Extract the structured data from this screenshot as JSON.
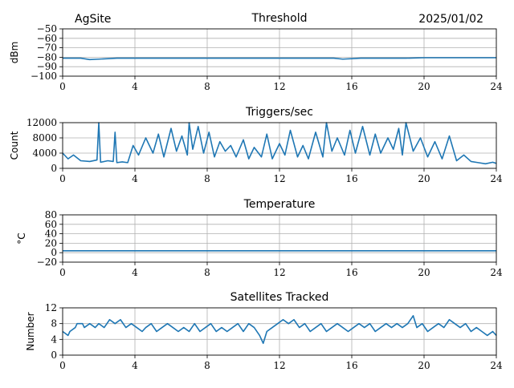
{
  "header": {
    "site": "AgSite",
    "date": "2025/01/02"
  },
  "colors": {
    "line": "#1f77b4",
    "grid": "#b0b0b0",
    "axis": "#000000"
  },
  "chart_data": [
    {
      "type": "line",
      "title": "Threshold",
      "ylabel": "dBm",
      "xlim": [
        0,
        24
      ],
      "ylim": [
        -100,
        -50
      ],
      "xticks": [
        0,
        4,
        8,
        12,
        16,
        20,
        24
      ],
      "yticks": [
        -100,
        -90,
        -80,
        -70,
        -60,
        -50
      ],
      "xtick_labels": [
        "0",
        "4",
        "8",
        "12",
        "16",
        "20",
        "24"
      ],
      "ytick_labels": [
        "−100",
        "−90",
        "−80",
        "−70",
        "−60",
        "−50"
      ],
      "grid": true,
      "series": [
        {
          "x": [
            0,
            0.5,
            1.0,
            1.5,
            2.0,
            2.5,
            3.0,
            4,
            5,
            6,
            7,
            8,
            9,
            10,
            11,
            12,
            13,
            14,
            15,
            15.5,
            16,
            16.5,
            17,
            18,
            19,
            20,
            21,
            22,
            23,
            24
          ],
          "y": [
            -81,
            -81,
            -81,
            -82.5,
            -82,
            -81.5,
            -81,
            -81,
            -81,
            -81,
            -81,
            -81,
            -81,
            -81,
            -81,
            -81,
            -81,
            -81,
            -81,
            -82,
            -81.5,
            -81,
            -81,
            -81,
            -81,
            -80.5,
            -80.5,
            -80.5,
            -80.5,
            -80.5
          ]
        }
      ]
    },
    {
      "type": "line",
      "title": "Triggers/sec",
      "ylabel": "Count",
      "xlim": [
        0,
        24
      ],
      "ylim": [
        0,
        12000
      ],
      "xticks": [
        0,
        4,
        8,
        12,
        16,
        20,
        24
      ],
      "yticks": [
        0,
        4000,
        8000,
        12000
      ],
      "xtick_labels": [
        "0",
        "4",
        "8",
        "12",
        "16",
        "20",
        "24"
      ],
      "ytick_labels": [
        "0",
        "4000",
        "8000",
        "12000"
      ],
      "grid": true,
      "series": [
        {
          "x": [
            0,
            0.3,
            0.6,
            1.0,
            1.5,
            1.9,
            2.0,
            2.1,
            2.5,
            2.8,
            2.9,
            3.0,
            3.3,
            3.6,
            3.9,
            4.2,
            4.6,
            5.0,
            5.3,
            5.6,
            6.0,
            6.3,
            6.6,
            6.9,
            7.0,
            7.2,
            7.5,
            7.8,
            8.1,
            8.4,
            8.7,
            9.0,
            9.3,
            9.6,
            10.0,
            10.3,
            10.6,
            11.0,
            11.3,
            11.6,
            12.0,
            12.3,
            12.6,
            13.0,
            13.3,
            13.6,
            14.0,
            14.4,
            14.6,
            14.9,
            15.2,
            15.6,
            15.9,
            16.2,
            16.6,
            17.0,
            17.3,
            17.6,
            18.0,
            18.3,
            18.6,
            18.8,
            19.0,
            19.4,
            19.8,
            20.2,
            20.6,
            21.0,
            21.4,
            21.8,
            22.2,
            22.6,
            23.0,
            23.4,
            23.8,
            24
          ],
          "y": [
            4000,
            2500,
            3500,
            2000,
            1800,
            2200,
            12000,
            1600,
            2000,
            1800,
            9500,
            1500,
            1700,
            1500,
            6000,
            3500,
            8000,
            4000,
            9000,
            3000,
            10500,
            4500,
            8500,
            3500,
            12000,
            5000,
            11000,
            4000,
            9500,
            3000,
            7000,
            4500,
            6000,
            3000,
            7500,
            2500,
            5500,
            3000,
            9000,
            2500,
            6500,
            3500,
            10000,
            3000,
            6000,
            2500,
            9500,
            3000,
            12000,
            4500,
            8000,
            3500,
            10000,
            4000,
            11000,
            3500,
            9000,
            4000,
            8000,
            5000,
            10500,
            3500,
            12000,
            4500,
            8000,
            3000,
            7000,
            2500,
            8500,
            2000,
            3500,
            1800,
            1500,
            1200,
            1600,
            1300
          ]
        }
      ]
    },
    {
      "type": "line",
      "title": "Temperature",
      "ylabel": "°C",
      "xlim": [
        0,
        24
      ],
      "ylim": [
        -20,
        80
      ],
      "xticks": [
        0,
        4,
        8,
        12,
        16,
        20,
        24
      ],
      "yticks": [
        -20,
        0,
        20,
        40,
        60,
        80
      ],
      "xtick_labels": [
        "0",
        "4",
        "8",
        "12",
        "16",
        "20",
        "24"
      ],
      "ytick_labels": [
        "−20",
        "0",
        "20",
        "40",
        "60",
        "80"
      ],
      "grid": true,
      "series": [
        {
          "x": [
            0,
            24
          ],
          "y": [
            4,
            4
          ]
        }
      ]
    },
    {
      "type": "line",
      "title": "Satellites Tracked",
      "ylabel": "Number",
      "xlim": [
        0,
        24
      ],
      "ylim": [
        0,
        12
      ],
      "xticks": [
        0,
        4,
        8,
        12,
        16,
        20,
        24
      ],
      "yticks": [
        0,
        4,
        8,
        12
      ],
      "xtick_labels": [
        "0",
        "4",
        "8",
        "12",
        "16",
        "20",
        "24"
      ],
      "ytick_labels": [
        "0",
        "4",
        "8",
        "12"
      ],
      "grid": true,
      "series": [
        {
          "x": [
            0,
            0.3,
            0.4,
            0.7,
            0.8,
            1.1,
            1.2,
            1.5,
            1.8,
            2.0,
            2.3,
            2.6,
            2.9,
            3.2,
            3.5,
            3.8,
            4.1,
            4.4,
            4.6,
            4.9,
            5.2,
            5.5,
            5.8,
            6.1,
            6.4,
            6.7,
            7.0,
            7.3,
            7.6,
            7.9,
            8.2,
            8.5,
            8.8,
            9.1,
            9.4,
            9.7,
            10.0,
            10.3,
            10.6,
            10.9,
            11.1,
            11.3,
            11.6,
            11.9,
            12.2,
            12.5,
            12.8,
            13.1,
            13.4,
            13.7,
            14.0,
            14.3,
            14.6,
            14.9,
            15.2,
            15.5,
            15.8,
            16.1,
            16.4,
            16.7,
            17.0,
            17.3,
            17.6,
            17.9,
            18.2,
            18.5,
            18.8,
            19.1,
            19.4,
            19.6,
            19.9,
            20.2,
            20.5,
            20.8,
            21.1,
            21.4,
            21.7,
            22.0,
            22.3,
            22.6,
            22.9,
            23.2,
            23.5,
            23.8,
            24
          ],
          "y": [
            6,
            5,
            6,
            7,
            8,
            8,
            7,
            8,
            7,
            8,
            7,
            9,
            8,
            9,
            7,
            8,
            7,
            6,
            7,
            8,
            6,
            7,
            8,
            7,
            6,
            7,
            6,
            8,
            6,
            7,
            8,
            6,
            7,
            6,
            7,
            8,
            6,
            8,
            7,
            5,
            3,
            6,
            7,
            8,
            9,
            8,
            9,
            7,
            8,
            6,
            7,
            8,
            6,
            7,
            8,
            7,
            6,
            7,
            8,
            7,
            8,
            6,
            7,
            8,
            7,
            8,
            7,
            8,
            10,
            7,
            8,
            6,
            7,
            8,
            7,
            9,
            8,
            7,
            8,
            6,
            7,
            6,
            5,
            6,
            5
          ]
        }
      ]
    }
  ]
}
